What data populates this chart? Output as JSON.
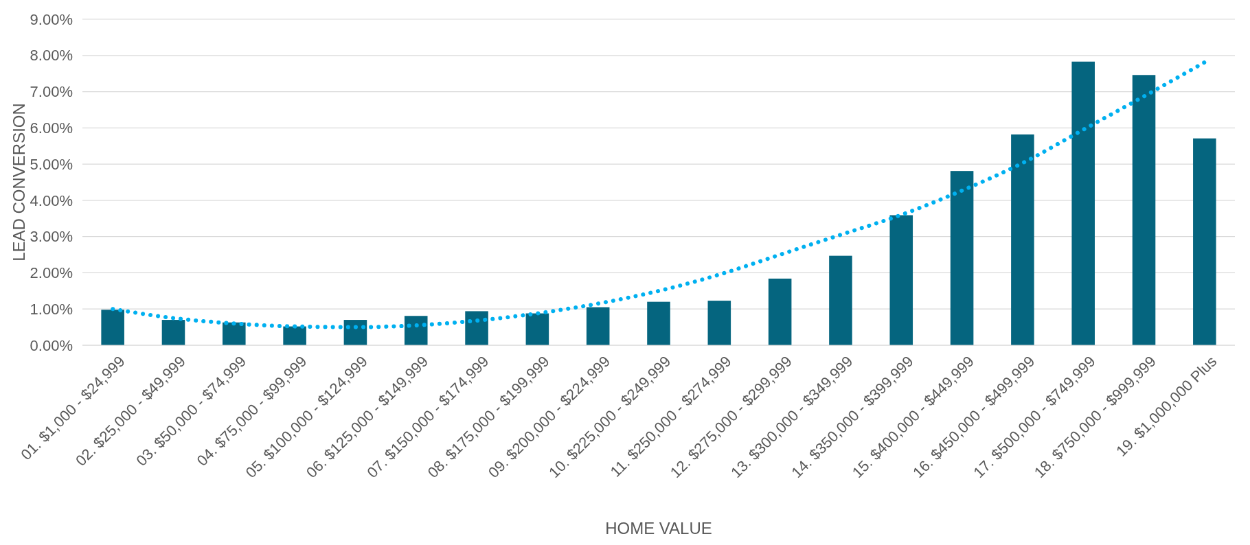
{
  "chart_data": {
    "type": "bar",
    "xlabel": "HOME VALUE",
    "ylabel": "LEAD CONVERSION",
    "categories": [
      "01. $1,000 - $24,999",
      "02. $25,000 - $49,999",
      "03. $50,000 - $74,999",
      "04. $75,000 - $99,999",
      "05. $100,000 - $124,999",
      "06. $125,000 - $149,999",
      "07. $150,000 - $174,999",
      "08. $175,000 - $199,999",
      "09. $200,000 - $224,999",
      "10. $225,000 - $249,999",
      "11. $250,000 - $274,999",
      "12. $275,000 - $299,999",
      "13. $300,000 - $349,999",
      "14. $350,000 - $399,999",
      "15. $400,000 - $449,999",
      "16. $450,000 - $499,999",
      "17. $500,000 - $749,999",
      "18. $750,000 - $999,999",
      "19. $1,000,000 Plus"
    ],
    "series": [
      {
        "color": "#05657f",
        "values": [
          0.98,
          0.7,
          0.63,
          0.52,
          0.7,
          0.81,
          0.94,
          0.88,
          1.05,
          1.2,
          1.23,
          1.84,
          2.47,
          3.59,
          4.81,
          5.82,
          7.83,
          7.46,
          5.71
        ]
      },
      {
        "type": "line",
        "color": "#00b0f0",
        "line_style": "dotted",
        "marker": "none",
        "values": [
          1.0,
          0.75,
          0.6,
          0.52,
          0.5,
          0.55,
          0.68,
          0.88,
          1.15,
          1.5,
          1.95,
          2.5,
          3.05,
          3.6,
          4.27,
          5.03,
          5.95,
          6.87,
          7.81
        ]
      }
    ],
    "ylim": [
      0,
      9
    ],
    "yticks": [
      {
        "value": 0,
        "label": "0.00%"
      },
      {
        "value": 1,
        "label": "1.00%"
      },
      {
        "value": 2,
        "label": "2.00%"
      },
      {
        "value": 3,
        "label": "3.00%"
      },
      {
        "value": 4,
        "label": "4.00%"
      },
      {
        "value": 5,
        "label": "5.00%"
      },
      {
        "value": 6,
        "label": "6.00%"
      },
      {
        "value": 7,
        "label": "7.00%"
      },
      {
        "value": 8,
        "label": "8.00%"
      },
      {
        "value": 9,
        "label": "9.00%"
      }
    ],
    "grid": "y"
  }
}
